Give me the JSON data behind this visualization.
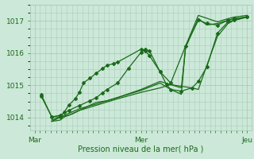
{
  "bg_color": "#cce8d8",
  "line_color": "#1a6b1a",
  "grid_color": "#aaccb8",
  "title": "Pression niveau de la mer( hPa )",
  "xlabel_ticks": [
    "Mar",
    "Mer",
    "Jeu"
  ],
  "ytick_labels": [
    "1014",
    "1015",
    "1016",
    "1017"
  ],
  "yticks": [
    1014,
    1015,
    1016,
    1017
  ],
  "ylim": [
    1013.6,
    1017.5
  ],
  "xlim": [
    -0.02,
    1.02
  ],
  "lines": [
    {
      "x": [
        0.03,
        0.08,
        0.12,
        0.14,
        0.16,
        0.19,
        0.21,
        0.23,
        0.26,
        0.29,
        0.32,
        0.34,
        0.37,
        0.39,
        0.5,
        0.52,
        0.54,
        0.59,
        0.64,
        0.71,
        0.77,
        0.81,
        0.86,
        0.91,
        0.94,
        1.0
      ],
      "y": [
        1014.72,
        1014.02,
        1014.02,
        1014.18,
        1014.38,
        1014.58,
        1014.78,
        1015.08,
        1015.22,
        1015.38,
        1015.52,
        1015.62,
        1015.67,
        1015.72,
        1016.12,
        1016.07,
        1015.92,
        1015.42,
        1015.07,
        1016.22,
        1017.02,
        1016.92,
        1016.87,
        1017.02,
        1017.07,
        1017.12
      ],
      "marker": "D",
      "ms": 2.0,
      "lw": 0.9
    },
    {
      "x": [
        0.08,
        0.12,
        0.14,
        0.18,
        0.21,
        0.29,
        0.39,
        0.5,
        0.59,
        0.64,
        0.69,
        0.74,
        0.77,
        0.81,
        0.86,
        0.91,
        0.94,
        1.0
      ],
      "y": [
        1013.88,
        1013.92,
        1014.02,
        1014.12,
        1014.22,
        1014.38,
        1014.58,
        1014.78,
        1014.92,
        1015.02,
        1014.97,
        1014.92,
        1014.87,
        1015.62,
        1016.52,
        1016.92,
        1017.02,
        1017.12
      ],
      "marker": null,
      "ms": 0,
      "lw": 0.9
    },
    {
      "x": [
        0.08,
        0.12,
        0.16,
        0.21,
        0.26,
        0.29,
        0.34,
        0.39,
        0.5,
        0.59,
        0.64,
        0.69,
        0.71,
        0.77,
        0.81,
        0.86,
        0.91,
        0.94,
        1.0
      ],
      "y": [
        1013.92,
        1014.02,
        1014.07,
        1014.22,
        1014.38,
        1014.47,
        1014.52,
        1014.62,
        1014.87,
        1015.12,
        1015.02,
        1014.92,
        1016.17,
        1017.07,
        1016.87,
        1016.92,
        1017.02,
        1017.07,
        1017.12
      ],
      "marker": null,
      "ms": 0,
      "lw": 0.9
    },
    {
      "x": [
        0.08,
        0.14,
        0.21,
        0.29,
        0.39,
        0.5,
        0.59,
        0.64,
        0.69,
        0.71,
        0.77,
        0.86,
        0.91,
        0.94,
        1.0
      ],
      "y": [
        1013.88,
        1014.07,
        1014.27,
        1014.42,
        1014.62,
        1014.84,
        1015.07,
        1014.87,
        1014.72,
        1016.22,
        1017.17,
        1016.97,
        1017.07,
        1017.12,
        1017.17
      ],
      "marker": null,
      "ms": 0,
      "lw": 0.9
    },
    {
      "x": [
        0.03,
        0.08,
        0.12,
        0.16,
        0.21,
        0.26,
        0.29,
        0.32,
        0.34,
        0.39,
        0.44,
        0.5,
        0.52,
        0.54,
        0.59,
        0.62,
        0.64,
        0.69,
        0.74,
        0.77,
        0.81,
        0.86,
        0.91,
        0.94,
        1.0
      ],
      "y": [
        1014.67,
        1014.02,
        1014.07,
        1014.22,
        1014.37,
        1014.52,
        1014.62,
        1014.77,
        1014.87,
        1015.07,
        1015.52,
        1016.02,
        1016.12,
        1016.07,
        1015.42,
        1015.02,
        1014.87,
        1014.82,
        1014.92,
        1015.12,
        1015.57,
        1016.62,
        1016.97,
        1017.02,
        1017.12
      ],
      "marker": "D",
      "ms": 2.0,
      "lw": 0.9
    }
  ]
}
